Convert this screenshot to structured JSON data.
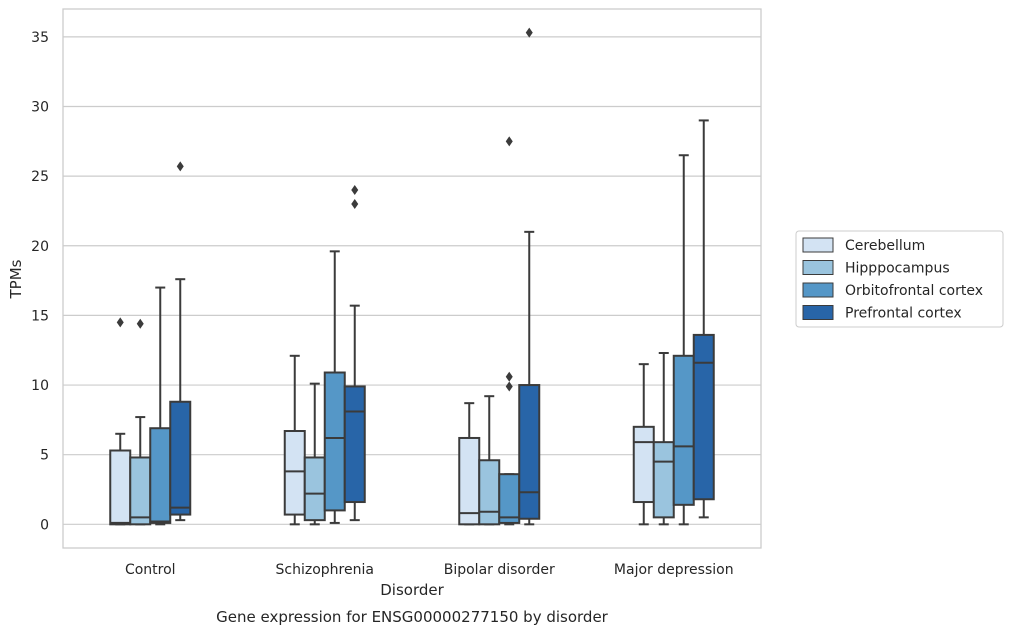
{
  "chart_data": {
    "type": "box",
    "title": "",
    "caption": "Gene expression for ENSG00000277150 by disorder",
    "xlabel": "Disorder",
    "ylabel": "TPMs",
    "ylim": [
      -1.7,
      37
    ],
    "yticks": [
      0,
      5,
      10,
      15,
      20,
      25,
      30,
      35
    ],
    "grid": "horizontal",
    "legend_position": "right",
    "categories": [
      "Control",
      "Schizophrenia",
      "Bipolar disorder",
      "Major depression"
    ],
    "series": [
      {
        "name": "Cerebellum",
        "color": "#d3e3f3",
        "boxes": [
          {
            "whisker_low": 0,
            "q1": 0,
            "median": 0.1,
            "q3": 5.3,
            "whisker_high": 6.5,
            "outliers": [
              14.5
            ]
          },
          {
            "whisker_low": 0,
            "q1": 0.7,
            "median": 3.8,
            "q3": 6.7,
            "whisker_high": 12.1,
            "outliers": []
          },
          {
            "whisker_low": 0,
            "q1": 0,
            "median": 0.8,
            "q3": 6.2,
            "whisker_high": 8.7,
            "outliers": []
          },
          {
            "whisker_low": 0,
            "q1": 1.6,
            "median": 5.9,
            "q3": 7.0,
            "whisker_high": 11.5,
            "outliers": []
          }
        ]
      },
      {
        "name": "Hipppocampus",
        "color": "#9ac4de",
        "boxes": [
          {
            "whisker_low": 0,
            "q1": 0,
            "median": 0.5,
            "q3": 4.8,
            "whisker_high": 7.7,
            "outliers": [
              14.4
            ]
          },
          {
            "whisker_low": 0,
            "q1": 0.3,
            "median": 2.2,
            "q3": 4.8,
            "whisker_high": 10.1,
            "outliers": []
          },
          {
            "whisker_low": 0,
            "q1": 0,
            "median": 0.9,
            "q3": 4.6,
            "whisker_high": 9.2,
            "outliers": []
          },
          {
            "whisker_low": 0,
            "q1": 0.5,
            "median": 4.5,
            "q3": 5.9,
            "whisker_high": 12.3,
            "outliers": []
          }
        ]
      },
      {
        "name": "Orbitofrontal cortex",
        "color": "#5597c7",
        "boxes": [
          {
            "whisker_low": 0,
            "q1": 0.1,
            "median": 0.2,
            "q3": 6.9,
            "whisker_high": 17.0,
            "outliers": []
          },
          {
            "whisker_low": 0.1,
            "q1": 1.0,
            "median": 6.2,
            "q3": 10.9,
            "whisker_high": 19.6,
            "outliers": []
          },
          {
            "whisker_low": 0,
            "q1": 0.1,
            "median": 0.5,
            "q3": 3.6,
            "whisker_high": 3.6,
            "outliers": [
              9.9,
              10.6,
              27.5
            ]
          },
          {
            "whisker_low": 0,
            "q1": 1.4,
            "median": 5.6,
            "q3": 12.1,
            "whisker_high": 26.5,
            "outliers": []
          }
        ]
      },
      {
        "name": "Prefrontal cortex",
        "color": "#2865a8",
        "boxes": [
          {
            "whisker_low": 0.3,
            "q1": 0.7,
            "median": 1.2,
            "q3": 8.8,
            "whisker_high": 17.6,
            "outliers": [
              25.7
            ]
          },
          {
            "whisker_low": 0.3,
            "q1": 1.6,
            "median": 8.1,
            "q3": 9.9,
            "whisker_high": 15.7,
            "outliers": [
              23.0,
              24.0
            ]
          },
          {
            "whisker_low": 0,
            "q1": 0.4,
            "median": 2.3,
            "q3": 10.0,
            "whisker_high": 21.0,
            "outliers": [
              35.3
            ]
          },
          {
            "whisker_low": 0.5,
            "q1": 1.8,
            "median": 11.6,
            "q3": 13.6,
            "whisker_high": 29.0,
            "outliers": []
          }
        ]
      }
    ]
  }
}
